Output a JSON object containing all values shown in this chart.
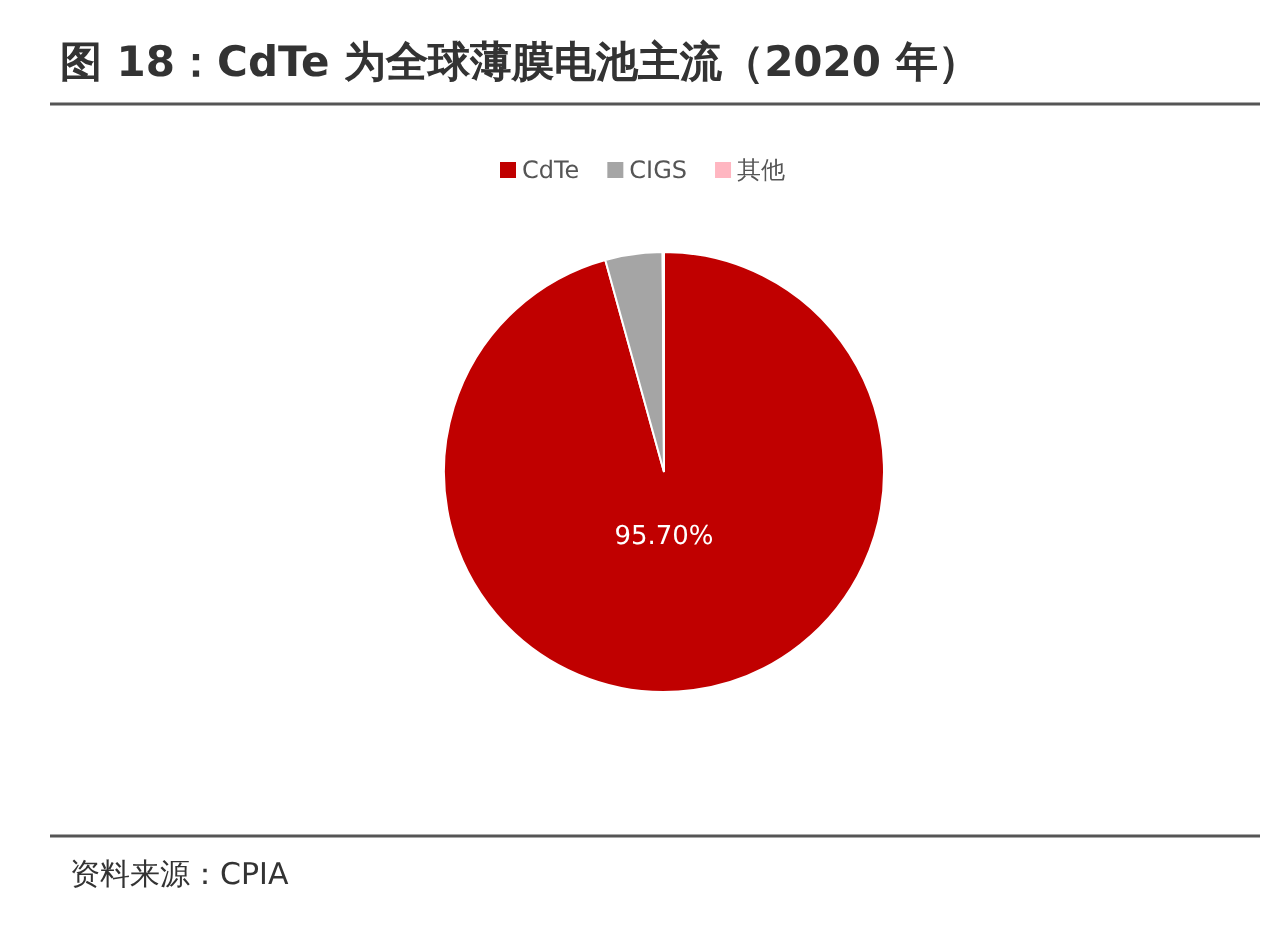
{
  "chart_data": {
    "type": "pie",
    "title": "图 18：CdTe 为全球薄膜电池主流（2020 年）",
    "categories": [
      "CdTe",
      "CIGS",
      "其他"
    ],
    "values": [
      95.7,
      4.2,
      0.1
    ],
    "value_labels": [
      "95.70%",
      null,
      null
    ],
    "colors": [
      "#c00000",
      "#a5a5a5",
      "#ffb6c1"
    ],
    "legend": "top",
    "annotations": [
      "资料来源：CPIA"
    ]
  }
}
